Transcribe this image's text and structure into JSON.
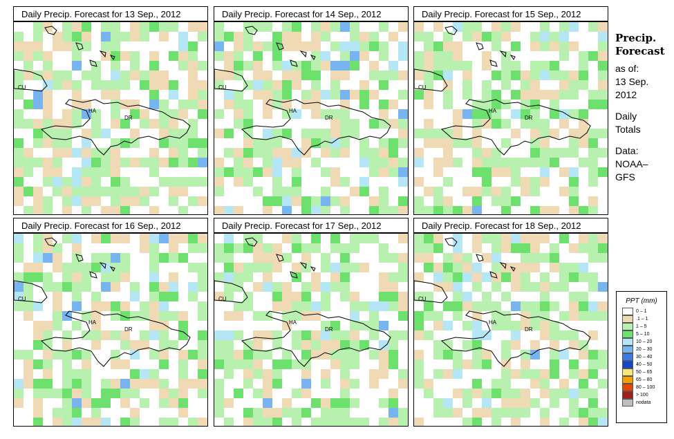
{
  "panels": [
    {
      "title": "Daily Precip. Forecast for  13 Sep., 2012",
      "labels": {
        "cu": "CU",
        "ha": "HA",
        "dr": "DR"
      }
    },
    {
      "title": "Daily Precip. Forecast for  14 Sep., 2012",
      "labels": {
        "cu": "CU",
        "ha": "HA",
        "dr": "DR"
      }
    },
    {
      "title": "Daily Precip. Forecast for  15 Sep., 2012",
      "labels": {
        "cu": "CU",
        "ha": "HA",
        "dr": "DR"
      }
    },
    {
      "title": "Daily Precip. Forecast for  16 Sep., 2012",
      "labels": {
        "cu": "CU",
        "ha": "HA",
        "dr": "DR"
      }
    },
    {
      "title": "Daily Precip. Forecast for  17 Sep., 2012",
      "labels": {
        "cu": "CU",
        "ha": "HA",
        "dr": "DR"
      }
    },
    {
      "title": "Daily Precip. Forecast for  18 Sep., 2012",
      "labels": {
        "cu": "CU",
        "ha": "HA",
        "dr": "DR"
      }
    }
  ],
  "info": {
    "title_line1": "Precip.",
    "title_line2": "Forecast",
    "asof": "as of:",
    "date_line1": "13 Sep.",
    "date_line2": "2012",
    "totals_line1": "Daily",
    "totals_line2": "Totals",
    "data_line1": "Data:",
    "data_line2": "NOAA–",
    "data_line3": "GFS"
  },
  "legend": {
    "title": "PPT (mm)",
    "items": [
      {
        "label": "0 – 1",
        "color": "#ffffff"
      },
      {
        "label": ".1 – 1",
        "color": "#f0d9b5"
      },
      {
        "label": "1 – 5",
        "color": "#b8f0b0"
      },
      {
        "label": "5 – 10",
        "color": "#6ee06e"
      },
      {
        "label": "10 – 20",
        "color": "#b4e6f5"
      },
      {
        "label": "20 – 30",
        "color": "#78b4f0"
      },
      {
        "label": "30 – 40",
        "color": "#3c78e6"
      },
      {
        "label": "40 – 50",
        "color": "#1446c8"
      },
      {
        "label": "50 – 65",
        "color": "#f5e67a"
      },
      {
        "label": "65 – 80",
        "color": "#f5a000"
      },
      {
        "label": "80 – 100",
        "color": "#e64600"
      },
      {
        "label": "> 100",
        "color": "#a01e1e"
      },
      {
        "label": "nodata",
        "color": "#bebebe"
      }
    ]
  }
}
